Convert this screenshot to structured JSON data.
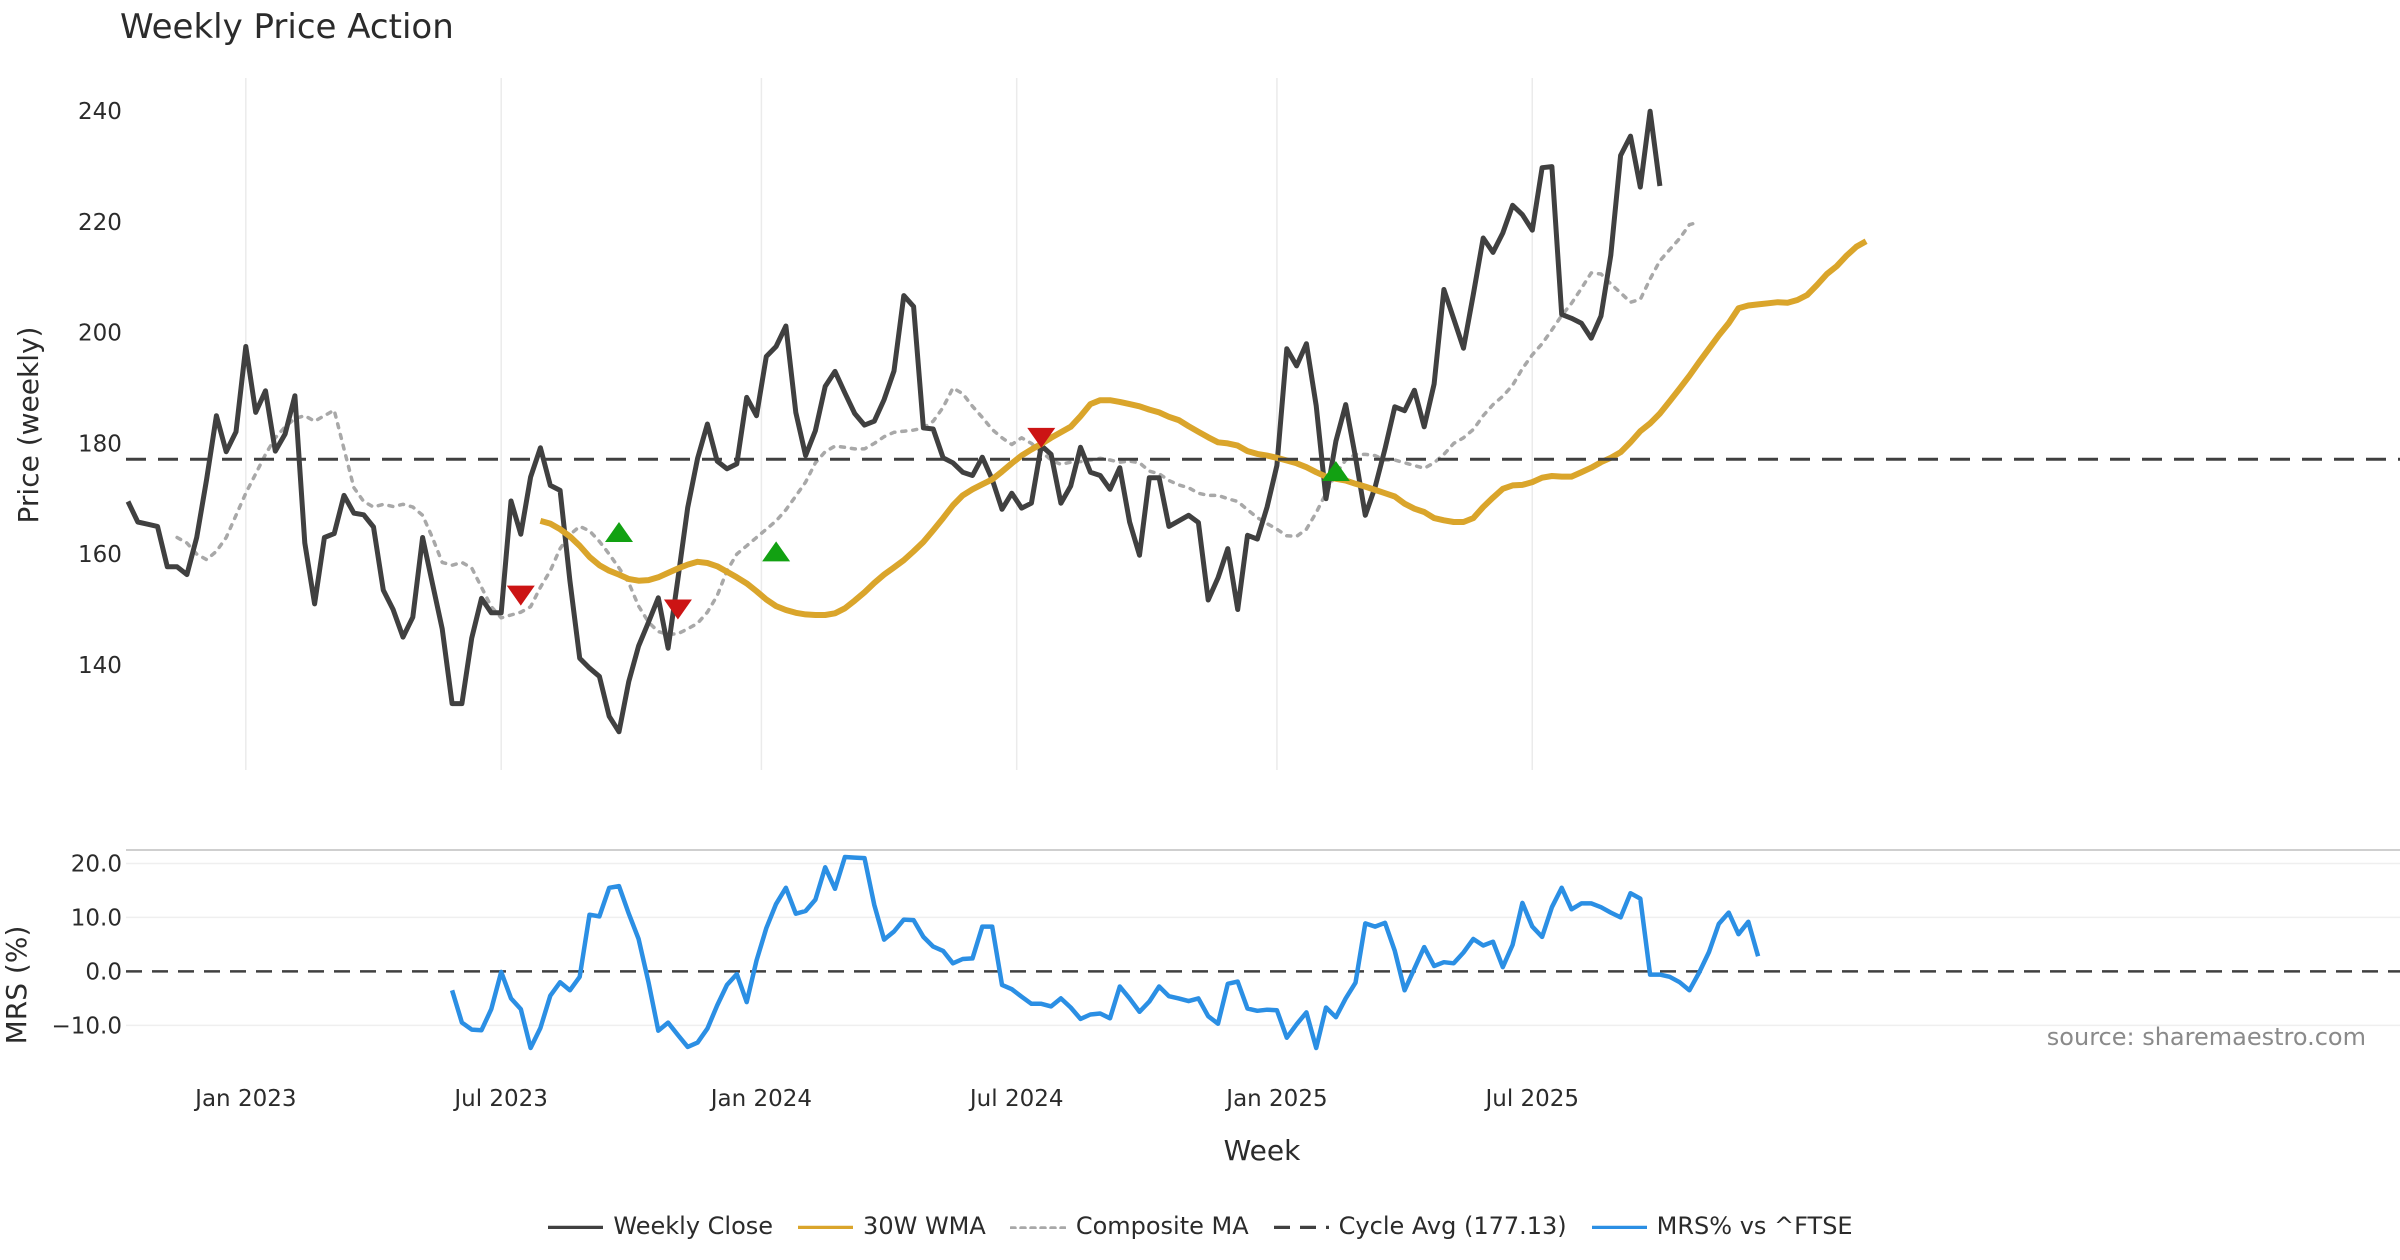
{
  "chart_data": [
    {
      "id": "price",
      "type": "line",
      "title": "Weekly Price Action",
      "ylabel": "Price (weekly)",
      "ylim": [
        121,
        246
      ],
      "yticks": [
        140,
        160,
        180,
        200,
        220,
        240
      ],
      "x_start": "2022-10-10",
      "x_step_days": 7,
      "series": [
        {
          "name": "Weekly Close",
          "color": "#404040",
          "style": "solid",
          "start_index": 0,
          "values": [
            169.5,
            165.8,
            165.4,
            165,
            157.7,
            157.7,
            156.3,
            163,
            173.5,
            185,
            178.5,
            182.1,
            197.5,
            185.6,
            189.5,
            178.6,
            181.7,
            188.6,
            162,
            151,
            163,
            163.7,
            170.6,
            167.4,
            167.1,
            164.9,
            153.5,
            150,
            145,
            148.6,
            163,
            154.7,
            146.5,
            133,
            133,
            144.8,
            152,
            149.4,
            149.4,
            169.6,
            163.6,
            173.9,
            179.2,
            172.4,
            171.5,
            155.2,
            141.2,
            139.4,
            137.9,
            130.7,
            127.9,
            137,
            143.4,
            147.7,
            152.1,
            143,
            155.5,
            168.4,
            177.3,
            183.5,
            176.8,
            175.4,
            176.3,
            188.3,
            185,
            195.7,
            197.5,
            201.2,
            185.6,
            177.8,
            182.3,
            190.3,
            193,
            189.1,
            185.4,
            183.3,
            184,
            187.9,
            193.1,
            206.7,
            204.7,
            182.8,
            182.6,
            177.4,
            176.5,
            174.8,
            174.2,
            177.5,
            173.5,
            168.1,
            171,
            168.3,
            169.2,
            179.6,
            178,
            169.2,
            172.3,
            179.3,
            174.8,
            174.2,
            171.7,
            175.6,
            165.8,
            159.8,
            173.8,
            173.8,
            165,
            166,
            167,
            165.7,
            151.7,
            155.7,
            161,
            150,
            163.4,
            162.7,
            168.5,
            176,
            197.1,
            194,
            198,
            186.8,
            170,
            180.4,
            187,
            177.5,
            167,
            172.1,
            179,
            186.6,
            185.9,
            189.6,
            183,
            190.7,
            207.8,
            202.5,
            197.2,
            206.9,
            217.1,
            214.5,
            218,
            223,
            221.3,
            218.5,
            229.8,
            230,
            203.3,
            202.6,
            201.7,
            199,
            203,
            214,
            232,
            235.5,
            226.3,
            240,
            226.5
          ]
        },
        {
          "name": "30W WMA",
          "color": "#DAA52B",
          "style": "solid",
          "start_index": 42,
          "values": [
            166,
            165.5,
            164.5,
            163.2,
            161.5,
            159.5,
            158,
            157,
            156.3,
            155.5,
            155.2,
            155.3,
            155.8,
            156.6,
            157.4,
            158.1,
            158.6,
            158.4,
            157.8,
            156.8,
            155.8,
            154.7,
            153.3,
            151.8,
            150.6,
            149.9,
            149.4,
            149.1,
            149,
            149,
            149.3,
            150.2,
            151.6,
            153.1,
            154.8,
            156.3,
            157.6,
            158.9,
            160.5,
            162.2,
            164.3,
            166.5,
            168.8,
            170.6,
            171.7,
            172.6,
            173.5,
            174.9,
            176.4,
            177.8,
            178.9,
            179.9,
            181,
            182,
            183,
            184.9,
            187.1,
            187.8,
            187.8,
            187.5,
            187.1,
            186.7,
            186.1,
            185.6,
            184.8,
            184.2,
            183.1,
            182.1,
            181.1,
            180.2,
            180,
            179.6,
            178.6,
            178.1,
            177.8,
            177.4,
            176.9,
            176.4,
            175.7,
            174.8,
            174,
            173.6,
            173.3,
            172.7,
            172.2,
            171.6,
            171,
            170.4,
            169.1,
            168.2,
            167.6,
            166.5,
            166.1,
            165.8,
            165.8,
            166.5,
            168.5,
            170.2,
            171.8,
            172.4,
            172.5,
            173,
            173.8,
            174.1,
            174,
            174,
            174.8,
            175.6,
            176.6,
            177.4,
            178.4,
            180.2,
            182.2,
            183.6,
            185.4,
            187.6,
            189.9,
            192.2,
            194.7,
            197.1,
            199.5,
            201.7,
            204.4,
            204.9,
            205.1,
            205.3,
            205.5,
            205.4,
            205.9,
            206.8,
            208.6,
            210.6,
            212,
            213.9,
            215.5,
            216.5
          ]
        },
        {
          "name": "Composite MA",
          "color": "#A8A8A8",
          "style": "dotted",
          "start_index": 5,
          "values": [
            163,
            162,
            160,
            159,
            160.5,
            163,
            167,
            171,
            174.5,
            178,
            181,
            183,
            184.5,
            185,
            184,
            185,
            186,
            179,
            172,
            169.5,
            168.5,
            169,
            168.6,
            169,
            168.5,
            167,
            163,
            158.5,
            158,
            158.5,
            157.5,
            154,
            150.5,
            148.5,
            149,
            149.5,
            150.5,
            154,
            157,
            161,
            163.5,
            165,
            164.2,
            162.3,
            160,
            157.5,
            154.8,
            150.6,
            147.7,
            146,
            145.5,
            145.6,
            146.5,
            147.5,
            149.5,
            152.5,
            157,
            160,
            161.5,
            163,
            164.5,
            166,
            168,
            170.5,
            173,
            176.5,
            178.5,
            179.5,
            179.3,
            179,
            179,
            180,
            181.2,
            182,
            182.2,
            182.4,
            182.8,
            184,
            186.5,
            190,
            189,
            186.7,
            184.7,
            182.5,
            181,
            179.8,
            181,
            180,
            178.5,
            177,
            176.2,
            176.6,
            176.7,
            177,
            177.3,
            177,
            176.6,
            176.8,
            176.5,
            175,
            174.5,
            173.3,
            172.5,
            172,
            171,
            170.6,
            170.6,
            170,
            169.5,
            168,
            166.6,
            165.5,
            164.5,
            163.3,
            163.2,
            164.5,
            167.5,
            171,
            174.5,
            177,
            178,
            178,
            177.8,
            177,
            177,
            176.5,
            176,
            175.5,
            176.5,
            178,
            180,
            181,
            182.5,
            185,
            187,
            188.5,
            190.5,
            193.5,
            196,
            198,
            200.5,
            203.1,
            205.3,
            208,
            210.8,
            210.6,
            208.8,
            207.2,
            205.5,
            206,
            209.7,
            213,
            215,
            217,
            219.5,
            220
          ]
        },
        {
          "name": "Cycle Avg (177.13)",
          "color": "#404040",
          "style": "dashed",
          "constant": 177.13
        }
      ],
      "signals": [
        {
          "type": "sell",
          "index": 40,
          "value": 152.5,
          "color": "#CC1414"
        },
        {
          "type": "buy",
          "index": 50,
          "value": 164,
          "color": "#12A112"
        },
        {
          "type": "sell",
          "index": 56,
          "value": 150,
          "color": "#CC1414"
        },
        {
          "type": "buy",
          "index": 66,
          "value": 160.5,
          "color": "#12A112"
        },
        {
          "type": "sell",
          "index": 93,
          "value": 181,
          "color": "#CC1414"
        },
        {
          "type": "buy",
          "index": 123,
          "value": 175,
          "color": "#12A112"
        }
      ],
      "annotation": "source: sharemaestro.com"
    },
    {
      "id": "mrs",
      "type": "line",
      "ylabel": "MRS (%)",
      "xlabel": "Week",
      "ylim": [
        -15.5,
        22.5
      ],
      "yticks": [
        20.0,
        10.0,
        0.0,
        -10.0
      ],
      "ytick_labels": [
        "20.0",
        "10.0",
        "0.0",
        "−10.0"
      ],
      "zero_line": 0,
      "series": [
        {
          "name": "MRS% vs ^FTSE",
          "color": "#2B8FE4",
          "style": "solid",
          "start_index": 33,
          "values": [
            -3.5,
            -9.5,
            -10.8,
            -10.9,
            -7,
            -0.1,
            -5,
            -7,
            -14.2,
            -10.5,
            -4.5,
            -2,
            -3.5,
            -1,
            10.5,
            10.2,
            15.5,
            15.8,
            10.7,
            6,
            -2,
            -11,
            -9.5,
            -11.8,
            -14,
            -13.2,
            -10.6,
            -6.3,
            -2.5,
            -0.5,
            -5.7,
            2,
            8,
            12.5,
            15.5,
            10.7,
            11.2,
            13.3,
            19.3,
            15.3,
            21.2,
            21.1,
            21,
            12.3,
            5.9,
            7.4,
            9.6,
            9.5,
            6.4,
            4.6,
            3.8,
            1.5,
            2.3,
            2.4,
            8.3,
            8.3,
            -2.5,
            -3.3,
            -4.7,
            -6,
            -6,
            -6.5,
            -5,
            -6.7,
            -8.8,
            -8,
            -7.8,
            -8.7,
            -2.8,
            -5,
            -7.5,
            -5.6,
            -2.8,
            -4.6,
            -5,
            -5.5,
            -5,
            -8.3,
            -9.7,
            -2.3,
            -1.9,
            -6.9,
            -7.3,
            -7.1,
            -7.2,
            -12.3,
            -9.8,
            -7.6,
            -14.2,
            -6.7,
            -8.5,
            -5,
            -2.1,
            8.9,
            8.3,
            9,
            3.8,
            -3.5,
            0.5,
            4.5,
            1,
            1.7,
            1.5,
            3.5,
            6,
            4.8,
            5.5,
            0.8,
            4.9,
            12.7,
            8.3,
            6.4,
            11.9,
            15.5,
            11.5,
            12.6,
            12.6,
            11.9,
            10.9,
            10,
            14.5,
            13.5,
            -0.6,
            -0.6,
            -1,
            -2,
            -3.5,
            -0.2,
            3.6,
            8.8,
            10.9,
            6.9,
            9.2,
            2.8
          ]
        }
      ]
    }
  ],
  "x_axis": {
    "ticks": [
      {
        "label": "Jan 2023",
        "index": 12
      },
      {
        "label": "Jul 2023",
        "index": 38
      },
      {
        "label": "Jan 2024",
        "index": 64.5
      },
      {
        "label": "Jul 2024",
        "index": 90.5
      },
      {
        "label": "Jan 2025",
        "index": 117
      },
      {
        "label": "Jul 2025",
        "index": 143
      }
    ]
  },
  "legend": [
    {
      "label": "Weekly Close",
      "color": "#404040",
      "style": "solid"
    },
    {
      "label": "30W WMA",
      "color": "#DAA52B",
      "style": "solid"
    },
    {
      "label": "Composite MA",
      "color": "#A8A8A8",
      "style": "dotted"
    },
    {
      "label": "Cycle Avg (177.13)",
      "color": "#404040",
      "style": "dashed"
    },
    {
      "label": "MRS% vs ^FTSE",
      "color": "#2B8FE4",
      "style": "solid"
    }
  ]
}
